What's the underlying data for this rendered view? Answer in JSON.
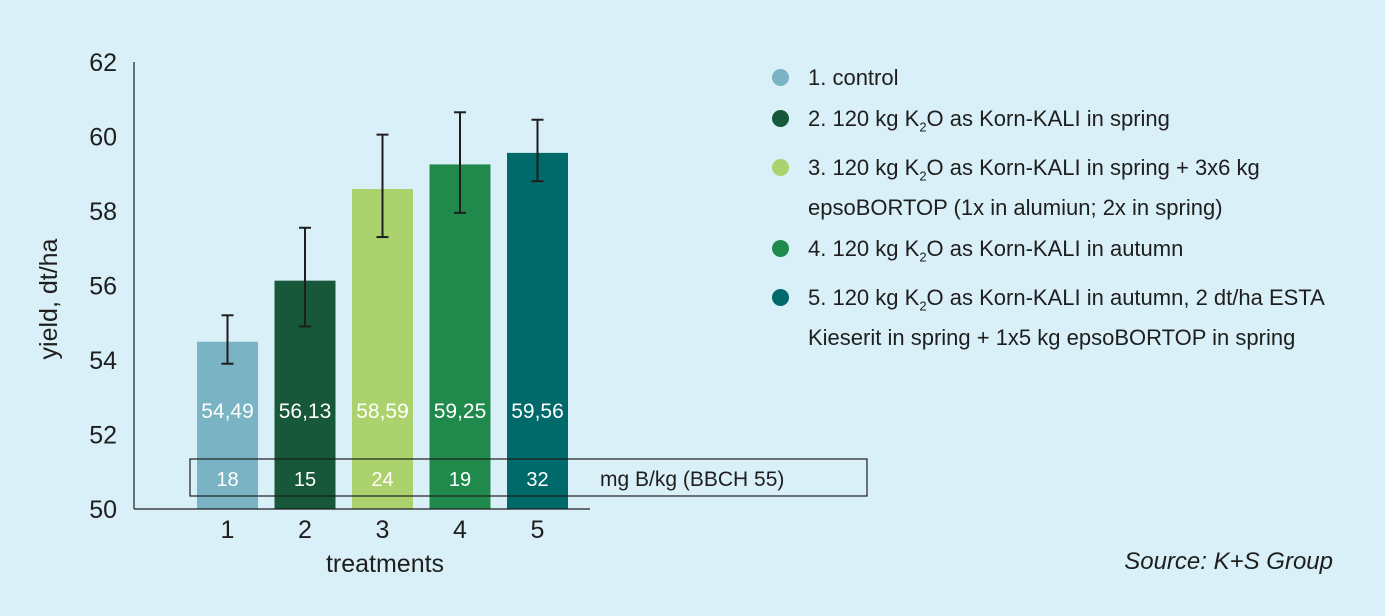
{
  "chart_data": {
    "type": "bar",
    "xlabel": "treatments",
    "ylabel": "yield, dt/ha",
    "ylim": [
      50,
      62
    ],
    "yticks": [
      50,
      52,
      54,
      56,
      58,
      60,
      62
    ],
    "categories": [
      "1",
      "2",
      "3",
      "4",
      "5"
    ],
    "values": [
      54.49,
      56.13,
      58.59,
      59.25,
      59.56
    ],
    "value_labels": [
      "54,49",
      "56,13",
      "58,59",
      "59,25",
      "59,56"
    ],
    "error_bars": [
      {
        "low": 53.9,
        "high": 55.2
      },
      {
        "low": 54.9,
        "high": 57.55
      },
      {
        "low": 57.3,
        "high": 60.05
      },
      {
        "low": 57.95,
        "high": 60.65
      },
      {
        "low": 58.8,
        "high": 60.45
      }
    ],
    "colors": [
      "#7ab3c3",
      "#17573a",
      "#acd26e",
      "#1f8a4c",
      "#00696a"
    ],
    "boron_values": [
      "18",
      "15",
      "24",
      "19",
      "32"
    ],
    "boron_unit": "mg B/kg (BBCH 55)",
    "legend_placement": "right",
    "grid": false,
    "legend": [
      {
        "prefix": "1. control",
        "sub": "",
        "suffix": ""
      },
      {
        "prefix": "2. 120 kg K",
        "sub": "2",
        "suffix": "O as Korn-KALI in spring"
      },
      {
        "prefix": "3. 120 kg K",
        "sub": "2",
        "suffix": "O as Korn-KALI in spring + 3x6 kg epsoBORTOP (1x in alumiun; 2x in spring)"
      },
      {
        "prefix": "4. 120 kg K",
        "sub": "2",
        "suffix": "O as Korn-KALI in autumn"
      },
      {
        "prefix": "5. 120 kg K",
        "sub": "2",
        "suffix": "O as Korn-KALI in autumn, 2 dt/ha ESTA Kieserit in spring + 1x5 kg epsoBORTOP in spring"
      }
    ]
  },
  "source": "Source: K+S Group"
}
